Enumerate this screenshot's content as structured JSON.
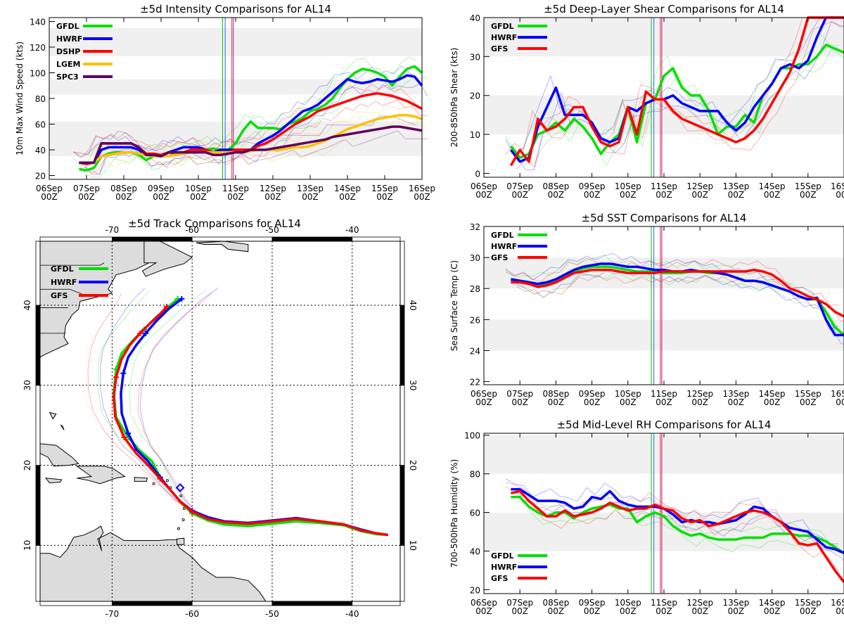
{
  "time_axis": {
    "dates": [
      "06Sep",
      "07Sep",
      "08Sep",
      "09Sep",
      "10Sep",
      "11Sep",
      "12Sep",
      "13Sep",
      "14Sep",
      "15Sep",
      "16Sep"
    ],
    "hour": "00Z",
    "init_markers": [
      {
        "day": 4.65,
        "color": "#00c000"
      },
      {
        "day": 4.72,
        "color": "#3060ff"
      },
      {
        "day": 4.9,
        "color": "#ff2020"
      },
      {
        "day": 4.94,
        "color": "#a020a0"
      }
    ]
  },
  "chart_data": [
    {
      "id": "intensity",
      "type": "line",
      "title": "±5d Intensity Comparisons for AL14",
      "xlabel": "",
      "ylabel": "10m Max Wind Speed (kts)",
      "xlim": [
        0,
        10
      ],
      "ylim": [
        17,
        143
      ],
      "yticks": [
        20,
        40,
        60,
        80,
        100,
        120,
        140
      ],
      "bands": [
        [
          35,
          62
        ],
        [
          83,
          95
        ],
        [
          113,
          135
        ]
      ],
      "legend": "top-left",
      "x": [
        0.8,
        1.0,
        1.2,
        1.4,
        1.6,
        1.8,
        2.0,
        2.2,
        2.4,
        2.6,
        2.8,
        3.0,
        3.2,
        3.4,
        3.6,
        3.8,
        4.0,
        4.2,
        4.4,
        4.6,
        4.8,
        5.0,
        5.2,
        5.4,
        5.6,
        5.8,
        6.0,
        6.2,
        6.4,
        6.6,
        6.8,
        7.0,
        7.2,
        7.4,
        7.6,
        7.8,
        8.0,
        8.2,
        8.4,
        8.6,
        8.8,
        9.0,
        9.2,
        9.4,
        9.6,
        9.8,
        10.0
      ],
      "series": [
        {
          "name": "GFDL",
          "color": "#00e000",
          "values": [
            25,
            24,
            26,
            35,
            37,
            38,
            38,
            38,
            36,
            32,
            35,
            35,
            38,
            36,
            37,
            40,
            40,
            40,
            41,
            40,
            40,
            45,
            55,
            62,
            57,
            57,
            57,
            56,
            60,
            62,
            65,
            70,
            72,
            75,
            80,
            88,
            95,
            100,
            103,
            102,
            100,
            97,
            90,
            97,
            103,
            105,
            100
          ]
        },
        {
          "name": "HWRF",
          "color": "#0000ff",
          "values": [
            30,
            30,
            30,
            40,
            42,
            42,
            42,
            42,
            40,
            36,
            36,
            35,
            38,
            40,
            42,
            42,
            42,
            40,
            38,
            40,
            40,
            40,
            40,
            40,
            45,
            48,
            51,
            55,
            60,
            65,
            70,
            72,
            75,
            80,
            85,
            90,
            95,
            93,
            92,
            93,
            95,
            94,
            93,
            95,
            98,
            97,
            90
          ]
        },
        {
          "name": "DSHP",
          "color": "#ff0000",
          "values": [
            30,
            29,
            30,
            45,
            45,
            45,
            45,
            45,
            42,
            37,
            37,
            36,
            38,
            38,
            38,
            40,
            40,
            40,
            38,
            38,
            38,
            40,
            40,
            40,
            43,
            45,
            48,
            52,
            56,
            60,
            63,
            66,
            70,
            72,
            74,
            76,
            78,
            80,
            82,
            83,
            84,
            83,
            82,
            80,
            78,
            75,
            72
          ]
        },
        {
          "name": "LGEM",
          "color": "#ffc000",
          "values": [
            30,
            30,
            30,
            35,
            36,
            37,
            38,
            38,
            37,
            36,
            35,
            35,
            35,
            36,
            37,
            38,
            38,
            38,
            38,
            38,
            38,
            38,
            38,
            39,
            40,
            40,
            40,
            40,
            41,
            42,
            42,
            43,
            45,
            47,
            50,
            53,
            56,
            58,
            60,
            62,
            64,
            65,
            66,
            67,
            67,
            66,
            64
          ]
        },
        {
          "name": "SPC3",
          "color": "#600060",
          "values": [
            30,
            30,
            30,
            45,
            45,
            45,
            45,
            45,
            42,
            36,
            36,
            35,
            38,
            38,
            38,
            38,
            38,
            38,
            36,
            36,
            37,
            38,
            38,
            40,
            40,
            40,
            41,
            42,
            43,
            44,
            45,
            46,
            47,
            48,
            50,
            51,
            52,
            53,
            54,
            55,
            56,
            57,
            58,
            58,
            57,
            56,
            55
          ]
        }
      ]
    },
    {
      "id": "shear",
      "type": "line",
      "title": "±5d Deep-Layer Shear Comparisons for AL14",
      "xlabel": "",
      "ylabel": "200-850hPa Shear (kts)",
      "xlim": [
        0,
        10
      ],
      "ylim": [
        -1,
        40
      ],
      "yticks": [
        0,
        10,
        20,
        30,
        40
      ],
      "bands": [
        [
          10,
          20
        ],
        [
          30,
          40
        ]
      ],
      "legend": "top-left",
      "x": [
        0.75,
        1.0,
        1.25,
        1.5,
        1.75,
        2.0,
        2.25,
        2.5,
        2.75,
        3.0,
        3.25,
        3.5,
        3.75,
        4.0,
        4.25,
        4.5,
        4.75,
        5.0,
        5.25,
        5.5,
        5.75,
        6.0,
        6.25,
        6.5,
        6.75,
        7.0,
        7.25,
        7.5,
        7.75,
        8.0,
        8.25,
        8.5,
        8.75,
        9.0,
        9.25,
        9.5,
        9.75,
        10.0
      ],
      "series": [
        {
          "name": "GFDL",
          "color": "#00e000",
          "values": [
            7,
            4,
            5,
            10,
            11,
            13,
            11,
            14,
            12,
            9,
            5,
            8,
            10,
            17,
            8,
            18,
            19,
            25,
            27,
            22,
            20,
            20,
            16,
            10,
            12,
            12,
            15,
            13,
            20,
            23,
            27,
            27,
            28,
            28,
            30,
            33,
            32,
            31
          ]
        },
        {
          "name": "HWRF",
          "color": "#0000ff",
          "values": [
            6,
            3,
            4,
            12,
            17,
            22,
            15,
            15,
            15,
            13,
            9,
            8,
            9,
            17,
            16,
            18,
            19,
            19,
            20,
            18,
            17,
            16,
            16,
            16,
            13,
            11,
            13,
            17,
            20,
            23,
            27,
            28,
            27,
            29,
            35,
            40,
            40,
            40
          ]
        },
        {
          "name": "GFS",
          "color": "#ff0000",
          "values": [
            2,
            6,
            3,
            14,
            11,
            12,
            14,
            17,
            17,
            12,
            8,
            7,
            8,
            17,
            10,
            21,
            19,
            19,
            16,
            14,
            13,
            12,
            11,
            10,
            9,
            8,
            9,
            11,
            14,
            18,
            22,
            26,
            32,
            40,
            40,
            40,
            40,
            40
          ]
        }
      ]
    },
    {
      "id": "sst",
      "type": "line",
      "title": "±5d SST Comparisons for AL14",
      "xlabel": "",
      "ylabel": "Sea Surface Temp (C)",
      "xlim": [
        0,
        10
      ],
      "ylim": [
        21.8,
        32
      ],
      "yticks": [
        22,
        24,
        26,
        28,
        30,
        32
      ],
      "bands": [
        [
          24,
          26
        ],
        [
          28,
          30
        ]
      ],
      "legend": "top-left",
      "x": [
        0.75,
        1.0,
        1.25,
        1.5,
        1.75,
        2.0,
        2.25,
        2.5,
        2.75,
        3.0,
        3.25,
        3.5,
        3.75,
        4.0,
        4.25,
        4.5,
        4.75,
        5.0,
        5.25,
        5.5,
        5.75,
        6.0,
        6.25,
        6.5,
        6.75,
        7.0,
        7.25,
        7.5,
        7.75,
        8.0,
        8.25,
        8.5,
        8.75,
        9.0,
        9.25,
        9.5,
        9.75,
        10.0
      ],
      "series": [
        {
          "name": "GFDL",
          "color": "#00e000",
          "values": [
            28.5,
            28.5,
            28.4,
            28.2,
            28.3,
            28.5,
            28.8,
            29.1,
            29.3,
            29.4,
            29.4,
            29.4,
            29.3,
            29.2,
            29.1,
            29.1,
            29.1,
            29.0,
            29.0,
            29.0,
            29.1,
            29.1,
            29.0,
            29.0,
            28.9,
            28.7,
            28.5,
            28.5,
            28.4,
            28.2,
            28.0,
            27.8,
            27.5,
            27.3,
            27.3,
            26.5,
            25.5,
            25.0
          ]
        },
        {
          "name": "HWRF",
          "color": "#0000ff",
          "values": [
            28.6,
            28.5,
            28.4,
            28.3,
            28.4,
            28.6,
            28.9,
            29.2,
            29.4,
            29.5,
            29.6,
            29.6,
            29.5,
            29.4,
            29.4,
            29.3,
            29.2,
            29.2,
            29.1,
            29.1,
            29.2,
            29.1,
            29.1,
            29.0,
            28.9,
            28.7,
            28.5,
            28.5,
            28.4,
            28.2,
            28.0,
            27.8,
            27.5,
            27.3,
            27.4,
            26.0,
            25.0,
            25.0
          ]
        },
        {
          "name": "GFS",
          "color": "#ff0000",
          "values": [
            28.4,
            28.4,
            28.3,
            28.1,
            28.2,
            28.4,
            28.7,
            29.0,
            29.1,
            29.2,
            29.2,
            29.2,
            29.1,
            29.0,
            29.0,
            29.0,
            29.0,
            29.1,
            29.1,
            29.1,
            29.1,
            29.1,
            29.1,
            29.1,
            29.1,
            29.1,
            29.1,
            29.2,
            29.1,
            28.9,
            28.5,
            28.0,
            27.8,
            27.5,
            27.3,
            27.0,
            26.5,
            26.2
          ]
        }
      ]
    },
    {
      "id": "rh",
      "type": "line",
      "title": "±5d Mid-Level RH Comparisons for AL14",
      "xlabel": "",
      "ylabel": "700-500hPa Humidity (%)",
      "xlim": [
        0,
        10
      ],
      "ylim": [
        18,
        101
      ],
      "yticks": [
        20,
        40,
        60,
        80,
        100
      ],
      "bands": [
        [
          40,
          60
        ],
        [
          80,
          100
        ]
      ],
      "legend": "bottom-left",
      "x": [
        0.75,
        1.0,
        1.25,
        1.5,
        1.75,
        2.0,
        2.25,
        2.5,
        2.75,
        3.0,
        3.25,
        3.5,
        3.75,
        4.0,
        4.25,
        4.5,
        4.75,
        5.0,
        5.25,
        5.5,
        5.75,
        6.0,
        6.25,
        6.5,
        6.75,
        7.0,
        7.25,
        7.5,
        7.75,
        8.0,
        8.25,
        8.5,
        8.75,
        9.0,
        9.25,
        9.5,
        9.75,
        10.0
      ],
      "series": [
        {
          "name": "GFDL",
          "color": "#00e000",
          "values": [
            68,
            68,
            63,
            60,
            58,
            60,
            60,
            57,
            60,
            62,
            63,
            64,
            62,
            62,
            55,
            58,
            60,
            58,
            53,
            50,
            48,
            49,
            47,
            46,
            46,
            46,
            47,
            47,
            47,
            49,
            49,
            49,
            48,
            48,
            47,
            45,
            42,
            39
          ]
        },
        {
          "name": "HWRF",
          "color": "#0000ff",
          "values": [
            72,
            72,
            69,
            66,
            66,
            66,
            65,
            62,
            63,
            68,
            67,
            71,
            66,
            64,
            63,
            63,
            63,
            62,
            59,
            55,
            56,
            55,
            55,
            54,
            55,
            56,
            59,
            63,
            62,
            58,
            55,
            52,
            51,
            50,
            46,
            42,
            41,
            39
          ]
        },
        {
          "name": "GFS",
          "color": "#ff0000",
          "values": [
            70,
            71,
            66,
            62,
            58,
            58,
            61,
            58,
            59,
            60,
            62,
            65,
            63,
            61,
            62,
            62,
            64,
            62,
            61,
            57,
            55,
            56,
            53,
            54,
            56,
            58,
            60,
            61,
            60,
            58,
            55,
            50,
            44,
            43,
            44,
            37,
            30,
            24
          ]
        }
      ]
    },
    {
      "id": "track",
      "type": "map",
      "title": "±5d Track Comparisons for AL14",
      "lon_range": [
        -79,
        -34
      ],
      "lat_range": [
        3,
        48
      ],
      "lon_ticks": [
        -70,
        -60,
        -50,
        -40
      ],
      "lat_ticks": [
        10,
        20,
        30,
        40
      ],
      "lon_labels": [
        "-70",
        "-60",
        "-50",
        "-40"
      ],
      "lat_labels": [
        "10",
        "20",
        "30",
        "40"
      ],
      "legend": "top-left",
      "series": [
        {
          "name": "GFDL",
          "color": "#00e000",
          "lon": [
            -35.5,
            -37,
            -39,
            -41,
            -44,
            -47,
            -50,
            -53,
            -56,
            -58,
            -60,
            -61.5,
            -62.8,
            -64,
            -65,
            -66.5,
            -68,
            -69.5,
            -69.8,
            -69.5,
            -68.8,
            -67.5,
            -66,
            -64.5,
            -63,
            -61.8
          ],
          "lat": [
            11.3,
            11.4,
            11.8,
            12.5,
            12.8,
            13,
            12.7,
            12.4,
            12.6,
            13.1,
            14,
            15.5,
            17,
            18.5,
            20.5,
            21.8,
            23.5,
            26,
            29,
            32,
            34,
            35.5,
            37,
            38.5,
            39.8,
            40.8
          ]
        },
        {
          "name": "HWRF",
          "color": "#0000ff",
          "lon": [
            -35.5,
            -37,
            -39,
            -41,
            -44,
            -47,
            -50,
            -53,
            -56,
            -58,
            -60,
            -61.5,
            -62.8,
            -64,
            -65.5,
            -67,
            -68,
            -68.8,
            -68.9,
            -68.6,
            -68,
            -67,
            -65.8,
            -64.5,
            -63,
            -61.3
          ],
          "lat": [
            11.3,
            11.5,
            12,
            12.6,
            13,
            13.4,
            13.1,
            12.8,
            13,
            13.5,
            14.3,
            15.5,
            17,
            18.5,
            20.5,
            22,
            24,
            26.5,
            29,
            31.5,
            33.5,
            35,
            36.5,
            38,
            39.5,
            40.8
          ]
        },
        {
          "name": "GFS",
          "color": "#ff0000",
          "lon": [
            -35.5,
            -37,
            -39,
            -41,
            -44,
            -47,
            -50,
            -53,
            -56,
            -58,
            -60,
            -61.5,
            -62.8,
            -64,
            -65.5,
            -67,
            -68.5,
            -69.6,
            -69.8,
            -69.5,
            -68.8,
            -67.8,
            -66.5,
            -65.2,
            -64.1,
            -63.2
          ],
          "lat": [
            11.3,
            11.5,
            11.9,
            12.6,
            13,
            13.3,
            13,
            12.7,
            12.9,
            13.3,
            14.2,
            15.5,
            17,
            18.3,
            20,
            21.5,
            23.5,
            26,
            28.5,
            31,
            33.3,
            35,
            36.5,
            37.8,
            38.8,
            39.8
          ]
        }
      ]
    }
  ]
}
